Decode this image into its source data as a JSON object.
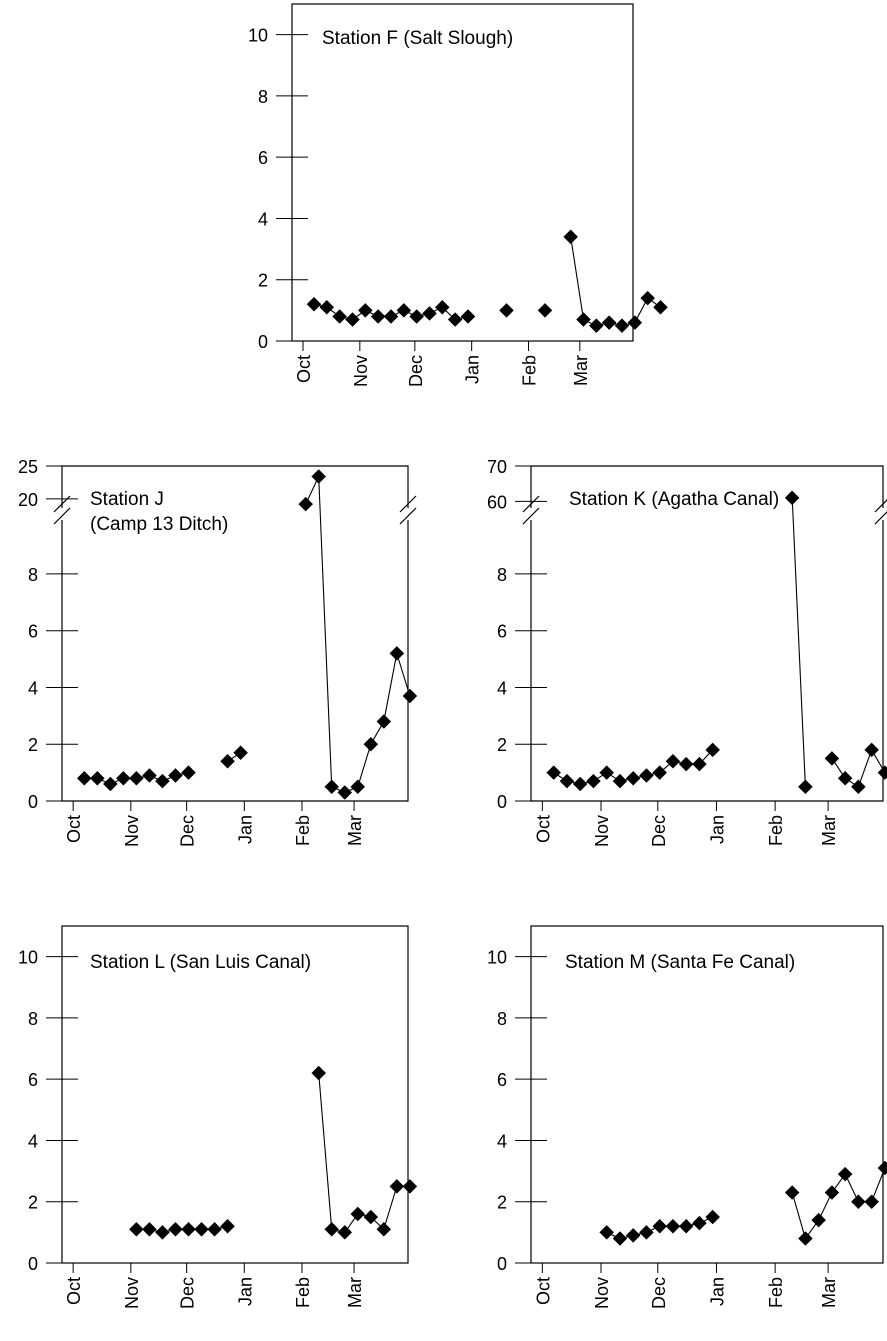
{
  "chart_data": [
    {
      "type": "line",
      "title": "Station F (Salt Slough)",
      "xticks": [
        "Oct",
        "Nov",
        "Dec",
        "Jan",
        "Feb",
        "Mar"
      ],
      "yticks": [
        0,
        2,
        4,
        6,
        8,
        10
      ],
      "ylim": [
        0,
        11
      ],
      "xlim_days": [
        -6,
        180
      ],
      "y_axis_break": false,
      "segments": [
        [
          [
            6,
            1.2
          ],
          [
            13,
            1.1
          ],
          [
            20,
            0.8
          ],
          [
            27,
            0.7
          ],
          [
            34,
            1.0
          ],
          [
            41,
            0.8
          ],
          [
            48,
            0.8
          ],
          [
            55,
            1.0
          ],
          [
            62,
            0.8
          ],
          [
            69,
            0.9
          ],
          [
            76,
            1.1
          ],
          [
            83,
            0.7
          ],
          [
            90,
            0.8
          ]
        ],
        [
          [
            111,
            1.0
          ]
        ],
        [
          [
            132,
            1.0
          ]
        ],
        [
          [
            146,
            3.4
          ],
          [
            153,
            0.7
          ],
          [
            160,
            0.5
          ],
          [
            167,
            0.6
          ],
          [
            174,
            0.5
          ],
          [
            181,
            0.6
          ],
          [
            188,
            1.4
          ],
          [
            195,
            1.1
          ]
        ]
      ]
    },
    {
      "type": "line",
      "title": "Station J\n(Camp 13 Ditch)",
      "title_lines": [
        "Station J",
        "(Camp 13 Ditch)"
      ],
      "xticks": [
        "Oct",
        "Nov",
        "Dec",
        "Jan",
        "Feb",
        "Mar"
      ],
      "yticks": [
        0,
        2,
        4,
        6,
        8
      ],
      "yticks_upper": [
        20,
        25
      ],
      "ylim": [
        0,
        9.9
      ],
      "ylim_upper": [
        18,
        25
      ],
      "xlim_days": [
        -6,
        180
      ],
      "y_axis_break": true,
      "segments": [
        [
          [
            6,
            0.8
          ],
          [
            13,
            0.8
          ],
          [
            20,
            0.6
          ],
          [
            27,
            0.8
          ],
          [
            34,
            0.8
          ],
          [
            41,
            0.9
          ],
          [
            48,
            0.7
          ],
          [
            55,
            0.9
          ],
          [
            62,
            1.0
          ]
        ],
        [
          [
            83,
            1.4
          ],
          [
            90,
            1.7
          ]
        ],
        [
          [
            125,
            19.2
          ],
          [
            132,
            23.4
          ],
          [
            139,
            0.5
          ],
          [
            146,
            0.3
          ],
          [
            153,
            0.5
          ],
          [
            160,
            2.0
          ],
          [
            167,
            2.8
          ],
          [
            174,
            5.2
          ],
          [
            181,
            3.7
          ]
        ]
      ]
    },
    {
      "type": "line",
      "title": "Station K (Agatha Canal)",
      "xticks": [
        "Oct",
        "Nov",
        "Dec",
        "Jan",
        "Feb",
        "Mar"
      ],
      "yticks": [
        0,
        2,
        4,
        6,
        8
      ],
      "yticks_upper": [
        60,
        70
      ],
      "ylim": [
        0,
        9.9
      ],
      "ylim_upper": [
        57,
        70
      ],
      "xlim_days": [
        -6,
        180
      ],
      "y_axis_break": true,
      "segments": [
        [
          [
            6,
            1.0
          ],
          [
            13,
            0.7
          ],
          [
            20,
            0.6
          ],
          [
            27,
            0.7
          ],
          [
            34,
            1.0
          ],
          [
            41,
            0.7
          ],
          [
            48,
            0.8
          ],
          [
            55,
            0.9
          ],
          [
            62,
            1.0
          ],
          [
            69,
            1.4
          ],
          [
            76,
            1.3
          ],
          [
            83,
            1.3
          ],
          [
            90,
            1.8
          ]
        ],
        [
          [
            132,
            61
          ],
          [
            139,
            0.5
          ]
        ],
        [
          [
            153,
            1.5
          ],
          [
            160,
            0.8
          ],
          [
            167,
            0.5
          ],
          [
            174,
            1.8
          ],
          [
            181,
            1.0
          ]
        ]
      ]
    },
    {
      "type": "line",
      "title": "Station L (San Luis Canal)",
      "xticks": [
        "Oct",
        "Nov",
        "Dec",
        "Jan",
        "Feb",
        "Mar"
      ],
      "yticks": [
        0,
        2,
        4,
        6,
        8,
        10
      ],
      "ylim": [
        0,
        11
      ],
      "xlim_days": [
        -6,
        180
      ],
      "y_axis_break": false,
      "segments": [
        [
          [
            34,
            1.1
          ],
          [
            41,
            1.1
          ],
          [
            48,
            1.0
          ],
          [
            55,
            1.1
          ],
          [
            62,
            1.1
          ],
          [
            69,
            1.1
          ],
          [
            76,
            1.1
          ],
          [
            83,
            1.2
          ]
        ],
        [
          [
            132,
            6.2
          ],
          [
            139,
            1.1
          ],
          [
            146,
            1.0
          ],
          [
            153,
            1.6
          ],
          [
            160,
            1.5
          ],
          [
            167,
            1.1
          ],
          [
            174,
            2.5
          ],
          [
            181,
            2.5
          ]
        ]
      ]
    },
    {
      "type": "line",
      "title": "Station M (Santa Fe Canal)",
      "xticks": [
        "Oct",
        "Nov",
        "Dec",
        "Jan",
        "Feb",
        "Mar"
      ],
      "yticks": [
        0,
        2,
        4,
        6,
        8,
        10
      ],
      "ylim": [
        0,
        11
      ],
      "xlim_days": [
        -6,
        180
      ],
      "y_axis_break": false,
      "segments": [
        [
          [
            34,
            1.0
          ],
          [
            41,
            0.8
          ],
          [
            48,
            0.9
          ],
          [
            55,
            1.0
          ],
          [
            62,
            1.2
          ],
          [
            69,
            1.2
          ],
          [
            76,
            1.2
          ],
          [
            83,
            1.3
          ],
          [
            90,
            1.5
          ]
        ],
        [
          [
            132,
            2.3
          ],
          [
            139,
            0.8
          ],
          [
            146,
            1.4
          ],
          [
            153,
            2.3
          ],
          [
            160,
            2.9
          ],
          [
            167,
            2.0
          ],
          [
            174,
            2.0
          ],
          [
            181,
            3.1
          ]
        ]
      ]
    }
  ]
}
